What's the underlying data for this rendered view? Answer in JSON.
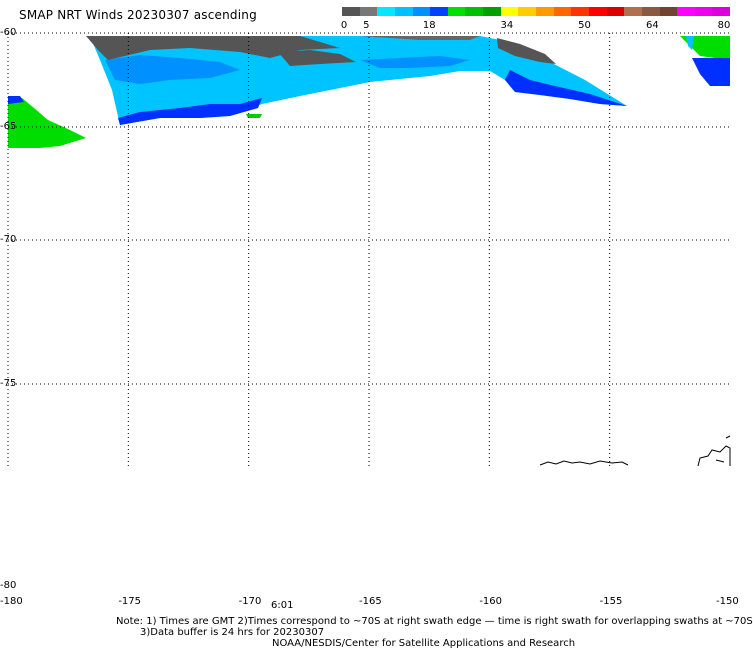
{
  "title": "SMAP NRT Winds 20230307 ascending",
  "colorbar": {
    "ticks": [
      "0",
      "5",
      "18",
      "34",
      "50",
      "64",
      "80"
    ],
    "tick_values": [
      0,
      5,
      18,
      34,
      50,
      64,
      80
    ],
    "segments": [
      "#555555",
      "#777777",
      "#00e8ff",
      "#00c0ff",
      "#0090ff",
      "#0040ff",
      "#00e000",
      "#00c000",
      "#00a000",
      "#ffff00",
      "#ffcc00",
      "#ff9900",
      "#ff6600",
      "#ff3300",
      "#ff0000",
      "#dd0000",
      "#b07050",
      "#8a5a40",
      "#70442e",
      "#ff00ff",
      "#ee00ee",
      "#dd00dd"
    ]
  },
  "latitudes": [
    {
      "label": "-60",
      "value": -60
    },
    {
      "label": "-65",
      "value": -65
    },
    {
      "label": "-70",
      "value": -70
    },
    {
      "label": "-75",
      "value": -75
    },
    {
      "label": "-80",
      "value": -80
    }
  ],
  "longitudes": [
    {
      "label": "-180",
      "value": -180
    },
    {
      "label": "-175",
      "value": -175
    },
    {
      "label": "-170",
      "value": -170
    },
    {
      "label": "-165",
      "value": -165
    },
    {
      "label": "-160",
      "value": -160
    },
    {
      "label": "-155",
      "value": -155
    },
    {
      "label": "-150",
      "value": -150
    }
  ],
  "time_label": "6:01",
  "notes": {
    "line1": "Note: 1) Times are GMT 2)Times correspond to ~70S at right swath edge — time is right swath for overlapping swaths at ~70S",
    "line2": "3)Data buffer is 24 hrs for 20230307",
    "line3": "NOAA/NESDIS/Center for Satellite Applications and Research"
  },
  "colors": {
    "calm": "#555555",
    "light": "#00c8ff",
    "moderate": "#0030ff",
    "strong": "#00dd00",
    "grid": "#000000",
    "coast": "#000000"
  }
}
